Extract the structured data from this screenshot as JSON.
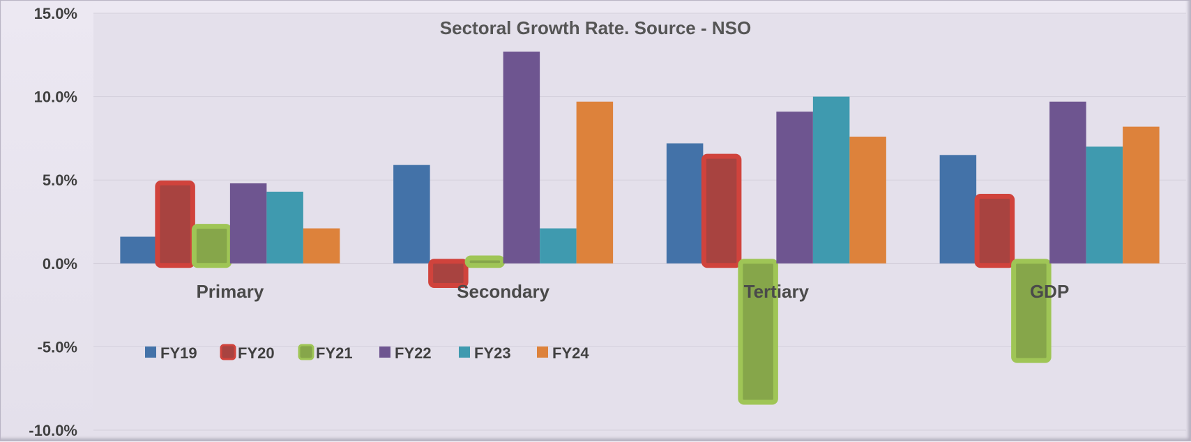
{
  "chart_data": {
    "type": "bar",
    "title": "Sectoral Growth Rate. Source - NSO",
    "categories": [
      "Primary",
      "Secondary",
      "Tertiary",
      "GDP"
    ],
    "series": [
      {
        "name": "FY19",
        "color": "#4372a8",
        "values": [
          1.6,
          5.9,
          7.2,
          6.5
        ]
      },
      {
        "name": "FY20",
        "color": "#a84340",
        "values": [
          4.7,
          -1.2,
          6.3,
          3.9
        ],
        "highlight": true
      },
      {
        "name": "FY21",
        "color": "#86a64a",
        "values": [
          2.1,
          0.2,
          -8.2,
          -5.7
        ],
        "highlight": true
      },
      {
        "name": "FY22",
        "color": "#6e5590",
        "values": [
          4.8,
          12.7,
          9.1,
          9.7
        ]
      },
      {
        "name": "FY23",
        "color": "#3f9aaf",
        "values": [
          4.3,
          2.1,
          10.0,
          7.0
        ]
      },
      {
        "name": "FY24",
        "color": "#dd823b",
        "values": [
          2.1,
          9.7,
          7.6,
          8.2
        ]
      }
    ],
    "ylim": [
      -10,
      15
    ],
    "yticks": [
      "15.0%",
      "10.0%",
      "5.0%",
      "0.0%",
      "-5.0%",
      "-10.0%"
    ],
    "ytick_values": [
      15,
      10,
      5,
      0,
      -5,
      -10
    ],
    "highlight_colors": {
      "FY20": "#d0433c",
      "FY21": "#9fc556"
    },
    "grid": true,
    "legend_position": "bottom-left"
  }
}
